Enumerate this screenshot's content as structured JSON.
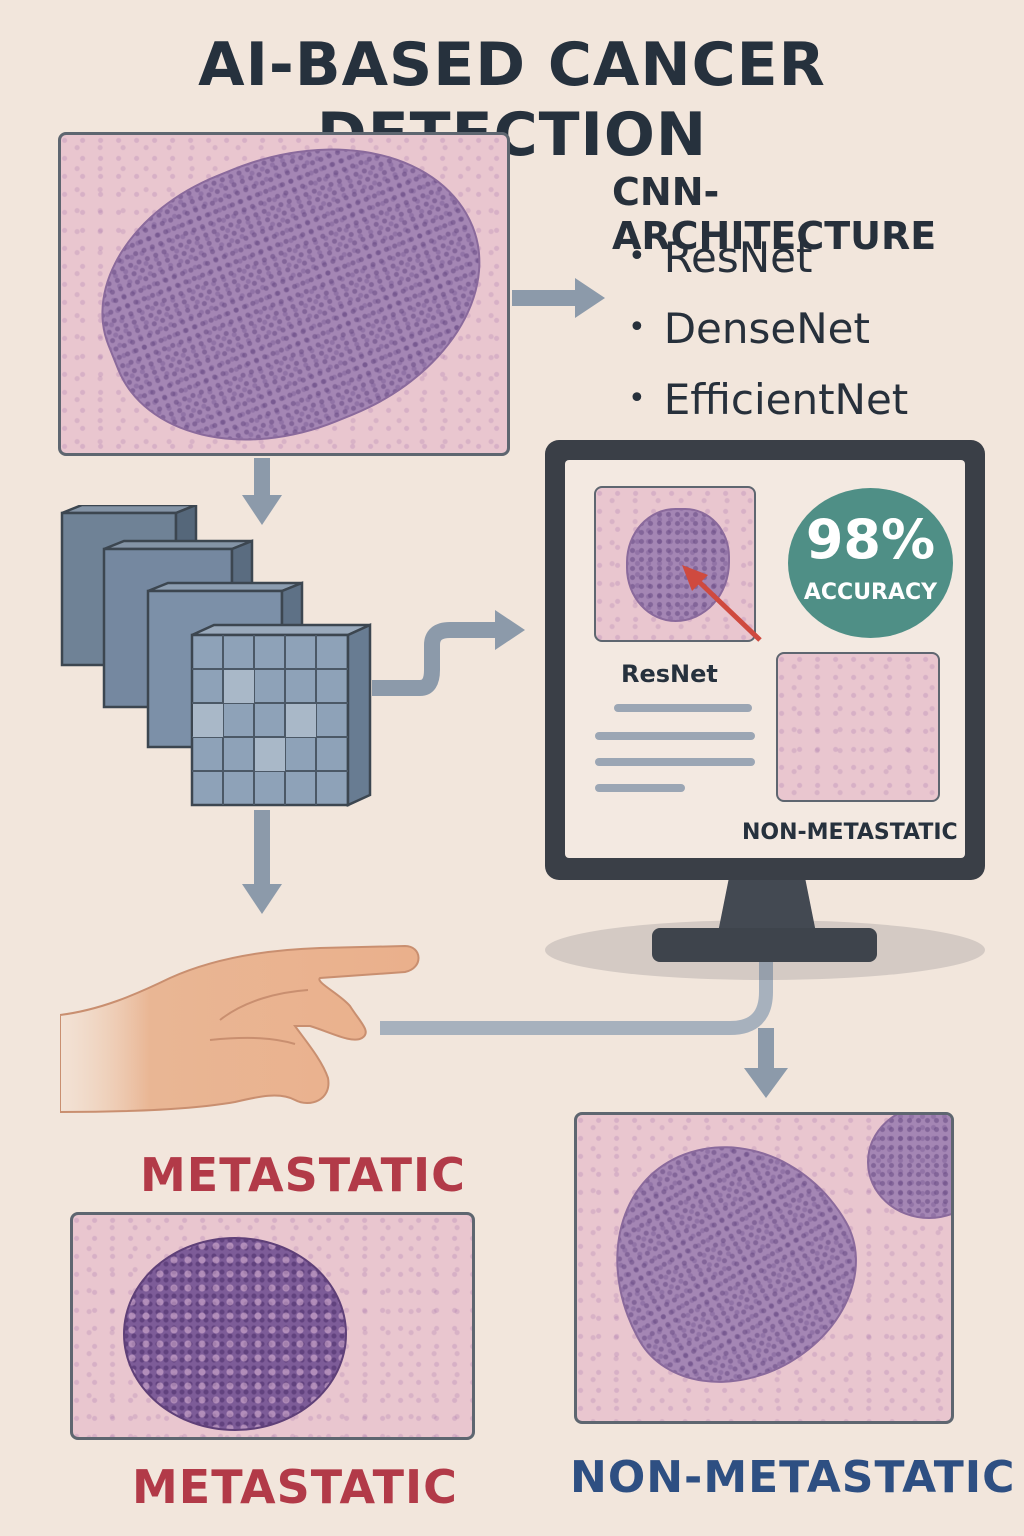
{
  "title": "AI-BASED CANCER DETECTION",
  "cnn": {
    "heading": "CNN-ARCHITECTURE",
    "items": [
      "ResNet",
      "DenseNet",
      "EfficientNet"
    ]
  },
  "monitor": {
    "accuracy_value": "98%",
    "accuracy_label": "ACCURACY",
    "model_label": "ResNet",
    "result_label": "NON-METASTATIC"
  },
  "labels": {
    "metastatic_top": "METASTATIC",
    "metastatic_bottom": "METASTATIC",
    "non_metastatic_bottom": "NON-METASTATIC"
  },
  "colors": {
    "background": "#f2e6dc",
    "accuracy_badge": "#4f8f86",
    "metastatic": "#b23a48",
    "non_metastatic": "#2e4f82",
    "arrow": "#8c9aaa"
  },
  "icons": [
    "hand-pointing-icon",
    "monitor-icon",
    "feature-map-cubes-icon"
  ]
}
